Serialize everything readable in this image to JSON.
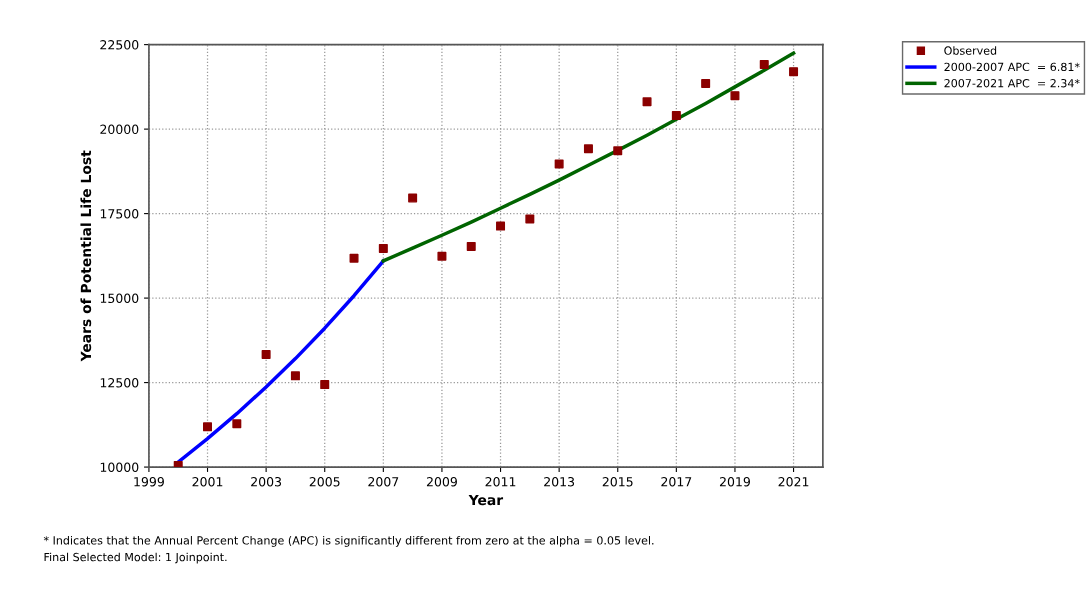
{
  "chart_data": {
    "type": "scatter",
    "xlabel": "Year",
    "ylabel": "Years of Potential Life Lost",
    "x": [
      2000,
      2001,
      2002,
      2003,
      2004,
      2005,
      2006,
      2007,
      2008,
      2009,
      2010,
      2011,
      2012,
      2013,
      2014,
      2015,
      2016,
      2017,
      2018,
      2019,
      2020,
      2021
    ],
    "series": [
      {
        "name": "Observed",
        "marker": "square",
        "color": "#8b0000",
        "values": [
          10050,
          11190,
          11280,
          13330,
          12700,
          12440,
          16180,
          16470,
          17960,
          16240,
          16530,
          17130,
          17340,
          18970,
          19420,
          19360,
          20810,
          20400,
          21350,
          20990,
          21910,
          21700
        ]
      },
      {
        "name": "2000-2007 APC  = 6.81*",
        "type": "line",
        "color": "#0000ff",
        "x": [
          2000,
          2001,
          2002,
          2003,
          2004,
          2005,
          2006,
          2007
        ],
        "values": [
          10150,
          10840,
          11580,
          12370,
          13210,
          14110,
          15070,
          16100
        ]
      },
      {
        "name": "2007-2021 APC  = 2.34*",
        "type": "line",
        "color": "#006400",
        "x": [
          2007,
          2008,
          2009,
          2010,
          2011,
          2012,
          2013,
          2014,
          2015,
          2016,
          2017,
          2018,
          2019,
          2020,
          2021
        ],
        "values": [
          16100,
          16480,
          16860,
          17250,
          17660,
          18070,
          18490,
          18930,
          19370,
          19820,
          20290,
          20760,
          21250,
          21740,
          22250
        ]
      }
    ],
    "xlim": [
      1999,
      2022
    ],
    "xticks": [
      1999,
      2001,
      2003,
      2005,
      2007,
      2009,
      2011,
      2013,
      2015,
      2017,
      2019,
      2021
    ],
    "ylim": [
      10000,
      22500
    ],
    "yticks": [
      10000,
      12500,
      15000,
      17500,
      20000,
      22500
    ],
    "grid": true,
    "legend": "top right",
    "annotations": [
      "* Indicates that the Annual Percent Change (APC) is significantly different from zero at the alpha = 0.05 level.",
      "Final Selected Model: 1 Joinpoint."
    ]
  }
}
